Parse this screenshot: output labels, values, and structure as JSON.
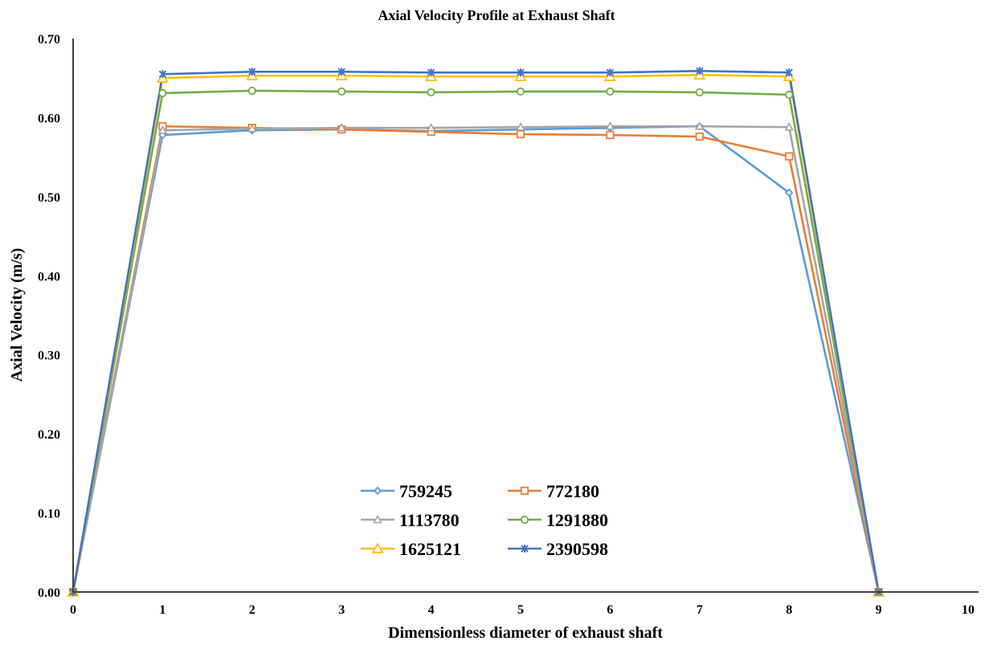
{
  "chart_data": {
    "type": "line",
    "title": "Axial Velocity Profile at Exhaust Shaft",
    "xlabel": "Dimensionless diameter of exhaust shaft",
    "ylabel": "Axial Velocity (m/s)",
    "xlim": [
      0,
      10
    ],
    "ylim": [
      0,
      0.7
    ],
    "xticks": [
      "0",
      "1",
      "2",
      "3",
      "4",
      "5",
      "6",
      "7",
      "8",
      "9",
      "10"
    ],
    "yticks": [
      "0.00",
      "0.10",
      "0.20",
      "0.30",
      "0.40",
      "0.50",
      "0.60",
      "0.70"
    ],
    "grid": false,
    "legend_position": "bottom-center",
    "x": [
      0,
      1,
      2,
      3,
      4,
      5,
      6,
      7,
      8,
      9
    ],
    "series": [
      {
        "name": "759245",
        "color": "#5B9BD5",
        "marker": "diamond",
        "values": [
          0.0,
          0.578,
          0.584,
          0.585,
          0.583,
          0.585,
          0.587,
          0.589,
          0.505,
          0.0
        ]
      },
      {
        "name": "772180",
        "color": "#ED7D31",
        "marker": "square",
        "values": [
          0.0,
          0.589,
          0.587,
          0.585,
          0.582,
          0.579,
          0.578,
          0.576,
          0.551,
          0.0
        ]
      },
      {
        "name": "1113780",
        "color": "#A5A5A5",
        "marker": "triangle",
        "values": [
          0.0,
          0.584,
          0.586,
          0.587,
          0.587,
          0.588,
          0.589,
          0.589,
          0.588,
          0.0
        ]
      },
      {
        "name": "1291880",
        "color": "#70AD47",
        "marker": "circle",
        "values": [
          0.0,
          0.631,
          0.634,
          0.633,
          0.632,
          0.633,
          0.633,
          0.632,
          0.629,
          0.0
        ]
      },
      {
        "name": "1625121",
        "color": "#FFC000",
        "marker": "triangle-large",
        "values": [
          0.0,
          0.65,
          0.653,
          0.653,
          0.652,
          0.652,
          0.652,
          0.654,
          0.652,
          0.0
        ]
      },
      {
        "name": "2390598",
        "color": "#4472C4",
        "marker": "star",
        "values": [
          0.0,
          0.655,
          0.658,
          0.658,
          0.657,
          0.657,
          0.657,
          0.659,
          0.657,
          0.0
        ]
      }
    ]
  }
}
